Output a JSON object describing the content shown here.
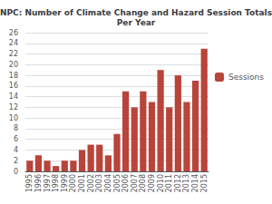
{
  "chart_data": {
    "type": "bar",
    "title": "NPC: Number of Climate Change and Hazard Session Totals\nPer Year",
    "categories": [
      "1995",
      "1996",
      "1997",
      "1998",
      "1999",
      "2000",
      "2001",
      "2002",
      "2003",
      "2004",
      "2005",
      "2006",
      "2007",
      "2008",
      "2009",
      "2010",
      "2011",
      "2012",
      "2013",
      "2014",
      "2015"
    ],
    "series": [
      {
        "name": "Sessions",
        "color": "#b8443a",
        "values": [
          2,
          3,
          2,
          1,
          2,
          2,
          4,
          5,
          5,
          3,
          7,
          15,
          12,
          15,
          13,
          19,
          12,
          18,
          13,
          17,
          23
        ]
      }
    ],
    "ylim": [
      0,
      26
    ],
    "yticks": [
      0,
      2,
      4,
      6,
      8,
      10,
      12,
      14,
      16,
      18,
      20,
      22,
      24,
      26
    ],
    "grid": true,
    "legend": "right"
  }
}
